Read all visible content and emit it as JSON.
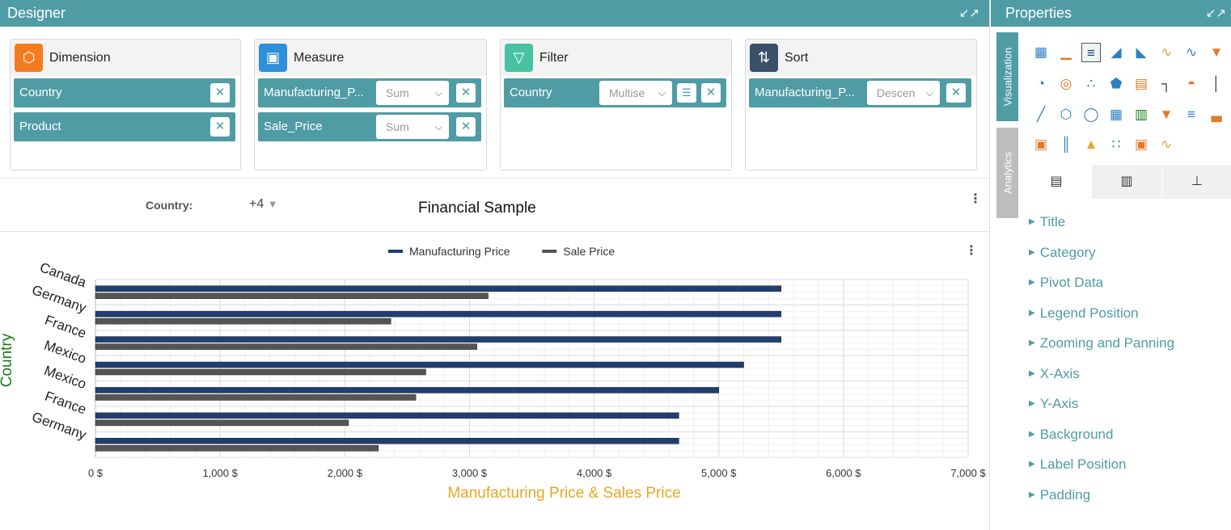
{
  "designer": {
    "title": "Designer",
    "cards": [
      {
        "title": "Dimension",
        "icon": "dimension-cube-icon",
        "color": "#f47c20",
        "items": [
          {
            "label": "Country"
          },
          {
            "label": "Product"
          }
        ]
      },
      {
        "title": "Measure",
        "icon": "measure-cube-icon",
        "color": "#2f8fd8",
        "items": [
          {
            "label": "Manufacturing_P...",
            "agg": "Sum"
          },
          {
            "label": "Sale_Price",
            "agg": "Sum"
          }
        ]
      },
      {
        "title": "Filter",
        "icon": "filter-funnel-icon",
        "color": "#48c2a0",
        "items": [
          {
            "label": "Country",
            "mode": "Multise"
          }
        ]
      },
      {
        "title": "Sort",
        "icon": "sort-arrows-icon",
        "color": "#3b5068",
        "items": [
          {
            "label": "Manufacturing_P...",
            "order": "Descen"
          }
        ]
      }
    ],
    "filter_bar": {
      "label": "Country:",
      "value": "+4"
    },
    "chart_title": "Financial Sample"
  },
  "chart_data": {
    "type": "bar",
    "orientation": "horizontal",
    "categories": [
      "Canada",
      "Germany",
      "France",
      "Mexico",
      "Mexico",
      "France",
      "Germany"
    ],
    "series": [
      {
        "name": "Manufacturing Price",
        "color": "#1f3f72",
        "values": [
          5500,
          5500,
          5500,
          5200,
          5000,
          4680,
          4680
        ]
      },
      {
        "name": "Sale Price",
        "color": "#555555",
        "values": [
          3150,
          2370,
          3060,
          2650,
          2570,
          2030,
          2270
        ]
      }
    ],
    "xlabel": "Manufacturing Price & Sales Price",
    "ylabel": "Country",
    "xlim": [
      0,
      7000
    ],
    "xticks": [
      0,
      1000,
      2000,
      3000,
      4000,
      5000,
      6000,
      7000
    ],
    "xtick_labels": [
      "0 $",
      "1,000 $",
      "2,000 $",
      "3,000 $",
      "4,000 $",
      "5,000 $",
      "6,000 $",
      "7,000 $"
    ],
    "xlabel_color": "#e8a628",
    "ylabel_color": "#1a7a1a",
    "grid": true,
    "legend": "top-center"
  },
  "properties": {
    "title": "Properties",
    "side_tabs": [
      "Visualization",
      "Analytics"
    ],
    "items": [
      "Title",
      "Category",
      "Pivot Data",
      "Legend Position",
      "Zooming and Panning",
      "X-Axis",
      "Y-Axis",
      "Background",
      "Label Position",
      "Padding"
    ]
  }
}
